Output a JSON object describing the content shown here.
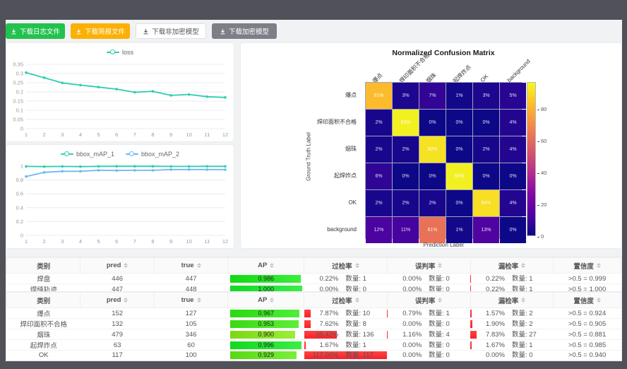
{
  "toolbar": {
    "buttons": [
      {
        "label": "下载日志文件",
        "style": "green"
      },
      {
        "label": "下载简报文件",
        "style": "orange"
      },
      {
        "label": "下载非加密模型",
        "style": "white"
      },
      {
        "label": "下载加密模型",
        "style": "gray"
      }
    ]
  },
  "colors": {
    "teal_line": "#2fcdb1",
    "blue_line": "#6db8f2",
    "green_button": "#23c24e",
    "orange_button": "#fbb005",
    "red_bar": "#f5222d"
  },
  "count_label": "数量",
  "chart_data": [
    {
      "type": "line",
      "title": "",
      "legend": [
        "loss"
      ],
      "x": [
        1,
        2,
        3,
        4,
        5,
        6,
        7,
        8,
        9,
        10,
        11,
        12
      ],
      "series": [
        {
          "name": "loss",
          "color": "#2fcdb1",
          "values": [
            0.305,
            0.277,
            0.249,
            0.237,
            0.226,
            0.215,
            0.198,
            0.203,
            0.181,
            0.186,
            0.174,
            0.17
          ]
        }
      ],
      "ylim": [
        0,
        0.35
      ],
      "yticks": [
        0,
        0.05,
        0.1,
        0.15,
        0.2,
        0.25,
        0.3,
        0.35
      ],
      "grid": true,
      "legend_position": "top"
    },
    {
      "type": "line",
      "title": "",
      "legend": [
        "bbox_mAP_1",
        "bbox_mAP_2"
      ],
      "x": [
        1,
        2,
        3,
        4,
        5,
        6,
        7,
        8,
        9,
        10,
        11,
        12
      ],
      "series": [
        {
          "name": "bbox_mAP_1",
          "color": "#2fcdb1",
          "values": [
            0.996,
            0.993,
            0.996,
            0.993,
            0.997,
            0.998,
            0.998,
            0.998,
            0.996,
            0.996,
            0.997,
            0.997
          ]
        },
        {
          "name": "bbox_mAP_2",
          "color": "#6db8f2",
          "values": [
            0.85,
            0.91,
            0.926,
            0.925,
            0.94,
            0.937,
            0.94,
            0.94,
            0.95,
            0.951,
            0.95,
            0.949
          ]
        }
      ],
      "ylim": [
        0,
        1
      ],
      "yticks": [
        0,
        0.2,
        0.4,
        0.6,
        0.8,
        1
      ],
      "grid": true,
      "legend_position": "top"
    },
    {
      "type": "heatmap",
      "title": "Normalized Confusion Matrix",
      "xlabel": "Prediction Label",
      "ylabel": "Ground Truth Label",
      "colormap": "plasma",
      "colorbar_ticks": [
        0,
        20,
        40,
        60,
        80
      ],
      "labels": [
        "爆点",
        "焊印面积不合格",
        "烟珠",
        "起焊炸点",
        "OK",
        "background"
      ],
      "matrix_percent": [
        [
          81,
          3,
          7,
          1,
          3,
          5
        ],
        [
          2,
          93,
          0,
          0,
          0,
          4
        ],
        [
          2,
          2,
          90,
          0,
          2,
          4
        ],
        [
          6,
          0,
          0,
          93,
          0,
          0
        ],
        [
          2,
          2,
          2,
          0,
          89,
          4
        ],
        [
          12,
          11,
          61,
          1,
          13,
          0
        ]
      ]
    }
  ],
  "tables": {
    "headers": [
      {
        "label": "类别",
        "sortable": false
      },
      {
        "label": "pred",
        "sortable": true
      },
      {
        "label": "true",
        "sortable": true
      },
      {
        "label": "AP",
        "sortable": true
      },
      {
        "label": "过检率",
        "sortable": true
      },
      {
        "label": "误判率",
        "sortable": true
      },
      {
        "label": "漏检率",
        "sortable": true
      },
      {
        "label": "置信度",
        "sortable": true
      }
    ],
    "table1_rows": [
      {
        "class": "焊盘",
        "pred": 446,
        "true": 447,
        "ap": 0.986,
        "over_pct": 0.22,
        "over_cnt": 1,
        "mis_pct": 0.0,
        "mis_cnt": 0,
        "miss_pct": 0.22,
        "miss_cnt": 1,
        "conf": ">0.5 = 0.999"
      },
      {
        "class": "焊缝轨迹",
        "pred": 447,
        "true": 448,
        "ap": 1.0,
        "over_pct": 0.0,
        "over_cnt": 0,
        "mis_pct": 0.0,
        "mis_cnt": 0,
        "miss_pct": 0.22,
        "miss_cnt": 1,
        "conf": ">0.5 = 1.000"
      }
    ],
    "table2_rows": [
      {
        "class": "爆点",
        "pred": 152,
        "true": 127,
        "ap": 0.967,
        "over_pct": 7.87,
        "over_cnt": 10,
        "mis_pct": 0.79,
        "mis_cnt": 1,
        "miss_pct": 1.57,
        "miss_cnt": 2,
        "conf": ">0.5 = 0.924"
      },
      {
        "class": "焊印面积不合格",
        "pred": 132,
        "true": 105,
        "ap": 0.953,
        "over_pct": 7.62,
        "over_cnt": 8,
        "mis_pct": 0.0,
        "mis_cnt": 0,
        "miss_pct": 1.9,
        "miss_cnt": 2,
        "conf": ">0.5 = 0.905"
      },
      {
        "class": "烟珠",
        "pred": 479,
        "true": 346,
        "ap": 0.9,
        "over_pct": 39.42,
        "over_cnt": 136,
        "mis_pct": 1.16,
        "mis_cnt": 4,
        "miss_pct": 7.83,
        "miss_cnt": 27,
        "conf": ">0.5 = 0.881"
      },
      {
        "class": "起焊炸点",
        "pred": 63,
        "true": 60,
        "ap": 0.996,
        "over_pct": 1.67,
        "over_cnt": 1,
        "mis_pct": 0.0,
        "mis_cnt": 0,
        "miss_pct": 1.67,
        "miss_cnt": 1,
        "conf": ">0.5 = 0.985"
      },
      {
        "class": "OK",
        "pred": 117,
        "true": 100,
        "ap": 0.929,
        "over_pct": 117.0,
        "over_cnt": 117,
        "mis_pct": 0.0,
        "mis_cnt": 0,
        "miss_pct": 0.0,
        "miss_cnt": 0,
        "conf": ">0.5 = 0.940"
      }
    ]
  }
}
